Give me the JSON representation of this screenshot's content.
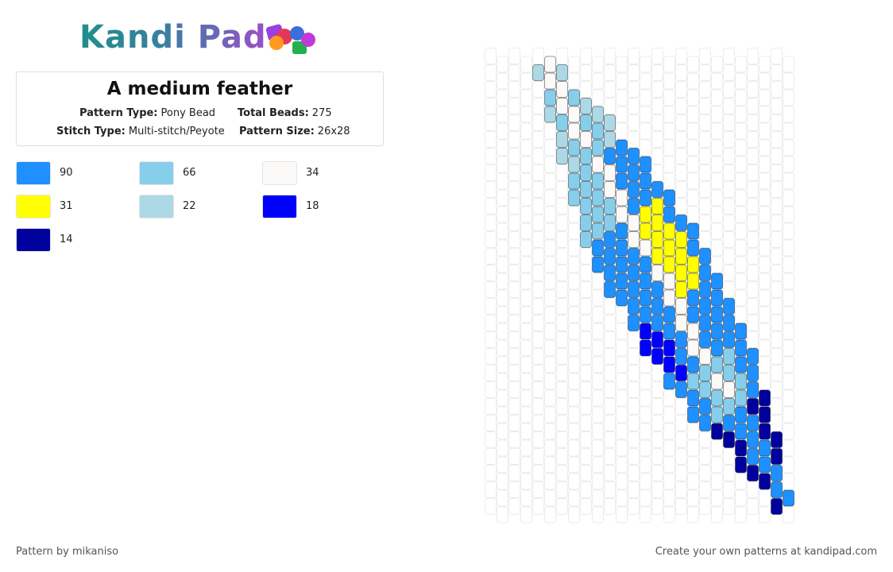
{
  "logo": {
    "text": "Kandi Pad"
  },
  "info": {
    "title": "A medium feather",
    "fields": [
      {
        "label": "Pattern Type:",
        "value": "Pony Bead"
      },
      {
        "label": "Total Beads:",
        "value": "275"
      },
      {
        "label": "Stitch Type:",
        "value": "Multi-stitch/Peyote"
      },
      {
        "label": "Pattern Size:",
        "value": "26x28"
      }
    ]
  },
  "palette": [
    {
      "color": "#1e90ff",
      "count": 90
    },
    {
      "color": "#87ceeb",
      "count": 66
    },
    {
      "color": "#fcf9f9",
      "count": 34
    },
    {
      "color": "#ffff00",
      "count": 31
    },
    {
      "color": "#add8e6",
      "count": 22
    },
    {
      "color": "#0000ff",
      "count": 18
    },
    {
      "color": "#00009c",
      "count": 14
    }
  ],
  "footer": {
    "author": "Pattern by mikaniso",
    "cta": "Create your own patterns at kandipad.com"
  }
}
